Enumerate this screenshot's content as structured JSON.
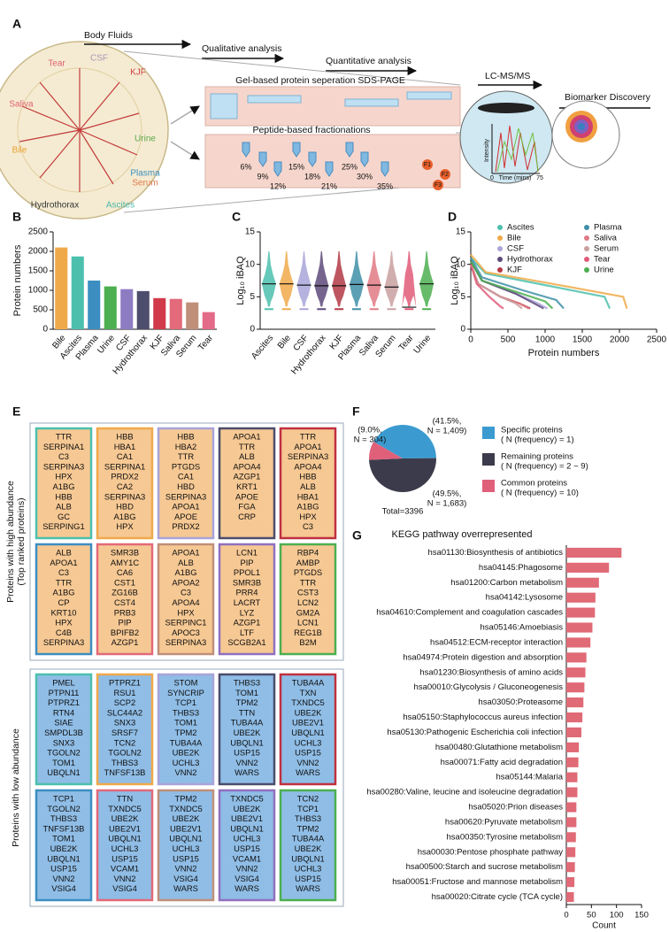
{
  "panel_labels": [
    "A",
    "B",
    "C",
    "D",
    "E",
    "F",
    "G"
  ],
  "diagram": {
    "steps": [
      "Body Fluids",
      "Qualitative analysis",
      "Quantitative analysis",
      "LC-MS/MS",
      "Biomarker Discovery"
    ],
    "methods": [
      "Gel-based protein seperation SDS-PAGE",
      "Peptide-based fractionations"
    ],
    "fluids": [
      "Tear",
      "CSF",
      "KJF",
      "Saliva",
      "Urine",
      "Bile",
      "Plasma",
      "Serum",
      "Hydrothorax",
      "Ascites"
    ],
    "fractions": [
      "6%",
      "9%",
      "12%",
      "15%",
      "18%",
      "21%",
      "25%",
      "30%",
      "35%"
    ],
    "fraction_pools": [
      "F1",
      "F2",
      "F3"
    ],
    "ms_axes": [
      "Intensity",
      "Time (mins)",
      "0",
      "75"
    ]
  },
  "chart_data": [
    {
      "type": "bar",
      "y_label": "Protein numbers",
      "categories": [
        "Bile",
        "Ascites",
        "Plasma",
        "Urine",
        "CSF",
        "Hydrothorax",
        "KJF",
        "Saliva",
        "Serum",
        "Tear"
      ],
      "values": [
        2100,
        1870,
        1250,
        1100,
        1030,
        980,
        800,
        780,
        690,
        440
      ],
      "colors": [
        "#f0a94a",
        "#4cc0ad",
        "#3c8ec2",
        "#4caf50",
        "#8e7cc3",
        "#4d4d6d",
        "#d13a4a",
        "#e26a7a",
        "#c08f7a",
        "#e46a8a"
      ],
      "ylim": [
        0,
        2500
      ],
      "yticks": [
        0,
        500,
        1000,
        1500,
        2000,
        2500
      ]
    },
    {
      "type": "violin",
      "y_label": "Log₁₀ iBAQ",
      "categories": [
        "Ascites",
        "Bile",
        "CSF",
        "Hydrothorax",
        "KJF",
        "Plasma",
        "Saliva",
        "Serum",
        "Tear",
        "Urine"
      ],
      "values": [
        7.0,
        7.0,
        6.8,
        6.7,
        6.7,
        6.9,
        6.8,
        6.5,
        3.4,
        7.0
      ],
      "colors": [
        "#4cc0ad",
        "#f0a94a",
        "#a9a4d9",
        "#5d4a7a",
        "#b33845",
        "#3f8fa8",
        "#e07a84",
        "#c9a0a0",
        "#e05a78",
        "#4caf50"
      ],
      "ylim": [
        0,
        15
      ],
      "yticks": [
        0,
        5,
        10,
        15
      ]
    },
    {
      "type": "line",
      "x_label": "Protein numbers",
      "y_label": "Log₁₀ iBAQ",
      "xlim": [
        0,
        2500
      ],
      "xticks": [
        0,
        500,
        1000,
        1500,
        2000,
        2500
      ],
      "ylim": [
        0,
        15
      ],
      "yticks": [
        0,
        5,
        10,
        15
      ],
      "series": [
        {
          "name": "Ascites",
          "color": "#4cc0ad",
          "x": [
            0,
            200,
            1000,
            1800,
            1870
          ],
          "values": [
            11,
            8.6,
            6.8,
            5,
            3.2
          ]
        },
        {
          "name": "Bile",
          "color": "#f0a94a",
          "x": [
            0,
            200,
            1000,
            2050,
            2100
          ],
          "values": [
            11.5,
            8.8,
            7.2,
            5,
            3.2
          ]
        },
        {
          "name": "CSF",
          "color": "#a9a4d9",
          "x": [
            0,
            150,
            600,
            900,
            1030
          ],
          "values": [
            10.5,
            7.5,
            5.5,
            4,
            3.2
          ]
        },
        {
          "name": "Hydrothorax",
          "color": "#5d4a7a",
          "x": [
            0,
            150,
            600,
            850,
            980
          ],
          "values": [
            10.5,
            7.5,
            5.5,
            4,
            3.2
          ]
        },
        {
          "name": "KJF",
          "color": "#b33845",
          "x": [
            0,
            100,
            400,
            650,
            800
          ],
          "values": [
            10,
            7,
            5,
            4,
            3.2
          ]
        },
        {
          "name": "Plasma",
          "color": "#3f8fa8",
          "x": [
            0,
            150,
            700,
            1150,
            1250
          ],
          "values": [
            11,
            8,
            6,
            4.5,
            3.2
          ]
        },
        {
          "name": "Saliva",
          "color": "#e07a84",
          "x": [
            0,
            100,
            400,
            650,
            780
          ],
          "values": [
            10,
            7,
            5,
            4,
            3.2
          ]
        },
        {
          "name": "Serum",
          "color": "#c9a0a0",
          "x": [
            0,
            100,
            400,
            600,
            690
          ],
          "values": [
            10,
            7,
            5,
            4,
            3.2
          ]
        },
        {
          "name": "Tear",
          "color": "#e05a78",
          "x": [
            0,
            80,
            250,
            400,
            440
          ],
          "values": [
            10,
            7,
            5,
            3.5,
            3.2
          ]
        },
        {
          "name": "Urine",
          "color": "#4caf50",
          "x": [
            0,
            150,
            600,
            1000,
            1100
          ],
          "values": [
            10.5,
            7.5,
            5.8,
            4.3,
            3.2
          ]
        }
      ]
    },
    {
      "type": "pie",
      "categories": [
        "Specific proteins",
        "Remaining proteins",
        "Common proteins"
      ],
      "legend_details": [
        "( N (frequency) = 1)",
        "( N (frequency) = 2 ~ 9)",
        "( N (frequency) = 10)"
      ],
      "values": [
        41.5,
        49.5,
        9.0
      ],
      "value_labels": [
        [
          "(41.5%,",
          "N = 1,409)"
        ],
        [
          "(49.5%,",
          "N = 1,683)"
        ],
        [
          "(9.0%,",
          "N = 304)"
        ]
      ],
      "colors": [
        "#3b9bd0",
        "#3b3b4b",
        "#e0607a"
      ],
      "total_label": "Total=3396"
    },
    {
      "type": "hbar",
      "title": "KEGG pathway overrepresented",
      "x_label": "Count",
      "categories": [
        "hsa01130:Biosynthesis of antibiotics",
        "hsa04145:Phagosome",
        "hsa01200:Carbon metabolism",
        "hsa04142:Lysosome",
        "hsa04610:Complement and coagulation cascades",
        "hsa05146:Amoebiasis",
        "hsa04512:ECM-receptor interaction",
        "hsa04974:Protein digestion and absorption",
        "hsa01230:Biosynthesis of amino acids",
        "hsa00010:Glycolysis / Gluconeogenesis",
        "hsa03050:Proteasome",
        "hsa05150:Staphylococcus aureus infection",
        "hsa05130:Pathogenic Escherichia coli infection",
        "hsa00480:Glutathione metabolism",
        "hsa00071:Fatty acid degradation",
        "hsa05144:Malaria",
        "hsa00280:Valine, leucine and isoleucine degradation",
        "hsa05020:Prion diseases",
        "hsa00620:Pyruvate metabolism",
        "hsa00350:Tyrosine metabolism",
        "hsa00030:Pentose phosphate pathway",
        "hsa00500:Starch and sucrose metabolism",
        "hsa00051:Fructose and mannose metabolism",
        "hsa00020:Citrate cycle (TCA cycle)"
      ],
      "values": [
        110,
        85,
        65,
        58,
        57,
        52,
        48,
        40,
        38,
        36,
        34,
        32,
        30,
        25,
        24,
        22,
        22,
        20,
        20,
        19,
        18,
        17,
        16,
        15
      ],
      "color": "#e06a76",
      "xlim": [
        0,
        150
      ],
      "xticks": [
        0,
        50,
        100,
        150
      ]
    }
  ],
  "table": {
    "high_label": "Proteins with high abundance",
    "high_sublabel": "(Top ranked proteins)",
    "low_label": "Proteins with low abundance",
    "border_colors": [
      "#4cc0ad",
      "#f0a94a",
      "#a9a4d9",
      "#4d4d6d",
      "#c03040",
      "#3c8ec2",
      "#e26a7a",
      "#c08f7a",
      "#9070c0",
      "#4caf50"
    ],
    "high": [
      [
        "TTR",
        "SERPINA1",
        "C3",
        "SERPINA3",
        "HPX",
        "A1BG",
        "HBB",
        "ALB",
        "GC",
        "SERPING1"
      ],
      [
        "HBB",
        "HBA1",
        "CA1",
        "SERPINA1",
        "PRDX2",
        "CA2",
        "SERPINA3",
        "HBD",
        "A1BG",
        "HPX"
      ],
      [
        "HBB",
        "HBA2",
        "TTR",
        "PTGDS",
        "CA1",
        "HBD",
        "SERPINA3",
        "APOA1",
        "APOE",
        "PRDX2"
      ],
      [
        "APOA1",
        "TTR",
        "ALB",
        "APOA4",
        "AZGP1",
        "KRT1",
        "APOE",
        "FGA",
        "CRP"
      ],
      [
        "TTR",
        "APOA1",
        "SERPINA3",
        "APOA4",
        "HBB",
        "ALB",
        "HBA1",
        "A1BG",
        "HPX",
        "C3"
      ],
      [
        "ALB",
        "APOA1",
        "C3",
        "TTR",
        "A1BG",
        "CP",
        "KRT10",
        "HPX",
        "C4B",
        "SERPINA3"
      ],
      [
        "SMR3B",
        "AMY1C",
        "CA6",
        "CST1",
        "ZG16B",
        "CST4",
        "PRB3",
        "PIP",
        "BPIFB2",
        "AZGP1"
      ],
      [
        "APOA1",
        "ALB",
        "A1BG",
        "APOA2",
        "C3",
        "APOA4",
        "HPX",
        "SERPINC1",
        "APOC3",
        "SERPINA3"
      ],
      [
        "LCN1",
        "PIP",
        "PPOL1",
        "SMR3B",
        "PRR4",
        "LACRT",
        "LYZ",
        "AZGP1",
        "LTF",
        "SCGB2A1"
      ],
      [
        "RBP4",
        "AMBP",
        "PTGDS",
        "TTR",
        "CST3",
        "LCN2",
        "GM2A",
        "LCN1",
        "REG1B",
        "B2M"
      ]
    ],
    "low": [
      [
        "PMEL",
        "PTPN11",
        "PTPRZ1",
        "RTN4",
        "SIAE",
        "SMPDL3B",
        "SNX3",
        "TGOLN2",
        "TOM1",
        "UBQLN1"
      ],
      [
        "PTPRZ1",
        "RSU1",
        "SCP2",
        "SLC44A2",
        "SNX3",
        "SRSF7",
        "TCN2",
        "TGOLN2",
        "THBS3",
        "TNFSF13B"
      ],
      [
        "STOM",
        "SYNCRIP",
        "TCP1",
        "THBS3",
        "TOM1",
        "TPM2",
        "TUBA4A",
        "UBE2K",
        "UCHL3",
        "VNN2"
      ],
      [
        "THBS3",
        "TOM1",
        "TPM2",
        "TTN",
        "TUBA4A",
        "UBE2K",
        "UBQLN1",
        "USP15",
        "VNN2",
        "WARS"
      ],
      [
        "TUBA4A",
        "TXN",
        "TXNDC5",
        "UBE2K",
        "UBE2V1",
        "UBQLN1",
        "UCHL3",
        "USP15",
        "VNN2",
        "WARS"
      ],
      [
        "TCP1",
        "TGOLN2",
        "THBS3",
        "TNFSF13B",
        "TOM1",
        "UBE2K",
        "UBQLN1",
        "USP15",
        "VNN2",
        "VSIG4"
      ],
      [
        "TTN",
        "TXNDC5",
        "UBE2K",
        "UBE2V1",
        "UBQLN1",
        "UCHL3",
        "USP15",
        "VCAM1",
        "VNN2",
        "VSIG4"
      ],
      [
        "TPM2",
        "TXNDC5",
        "UBE2K",
        "UBE2V1",
        "UBQLN1",
        "UCHL3",
        "USP15",
        "VNN2",
        "VSIG4",
        "WARS"
      ],
      [
        "TXNDC5",
        "UBE2K",
        "UBE2V1",
        "UBQLN1",
        "UCHL3",
        "USP15",
        "VCAM1",
        "VNN2",
        "VSIG4",
        "WARS"
      ],
      [
        "TCN2",
        "TCP1",
        "THBS3",
        "TPM2",
        "TUBA4A",
        "UBE2K",
        "UBQLN1",
        "UCHL3",
        "USP15",
        "WARS"
      ]
    ]
  }
}
